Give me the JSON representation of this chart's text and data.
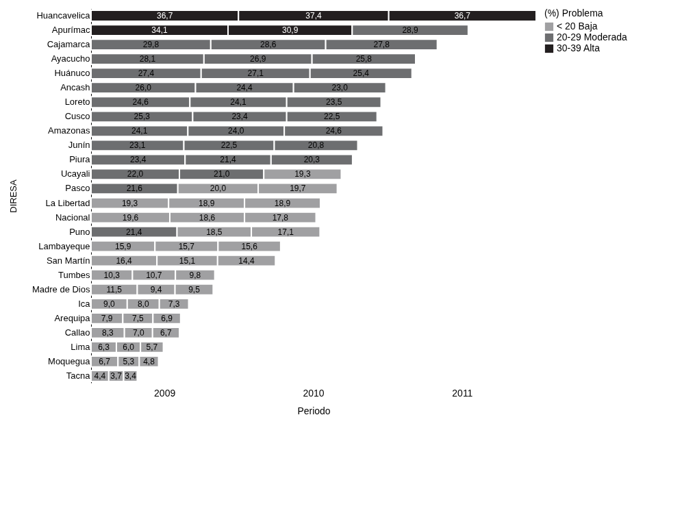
{
  "chart_data": {
    "type": "bar",
    "orientation": "horizontal",
    "stacked": true,
    "xlabel": "Periodo",
    "ylabel": "DIRESA",
    "legend_title": "(%)   Problema",
    "legend": "right",
    "annotations": [
      "< 20   Baja",
      "20-29  Moderada",
      "30-39  Alta"
    ],
    "categories": [
      "Huancavelica",
      "Apurímac",
      "Cajamarca",
      "Ayacucho",
      "Huánuco",
      "Ancash",
      "Loreto",
      "Cusco",
      "Amazonas",
      "Junín",
      "Piura",
      "Ucayali",
      "Pasco",
      "La Libertad",
      "Nacional",
      "Puno",
      "Lambayeque",
      "San Martín",
      "Tumbes",
      "Madre de Dios",
      "Ica",
      "Arequipa",
      "Callao",
      "Lima",
      "Moquegua",
      "Tacna"
    ],
    "series": [
      {
        "name": "2009",
        "values": [
          36.7,
          34.1,
          29.8,
          28.1,
          27.4,
          26.0,
          24.6,
          25.3,
          24.1,
          23.1,
          23.4,
          22.0,
          21.6,
          19.3,
          19.6,
          21.4,
          15.9,
          16.4,
          10.3,
          11.5,
          9.0,
          7.9,
          8.3,
          6.3,
          6.7,
          4.4
        ],
        "value_labels": [
          "36,7",
          "34,1",
          "29,8",
          "28,1",
          "27,4",
          "26,0",
          "24,6",
          "25,3",
          "24,1",
          "23,1",
          "23,4",
          "22,0",
          "21,6",
          "19,3",
          "19,6",
          "21,4",
          "15,9",
          "16,4",
          "10,3",
          "11,5",
          "9,0",
          "7,9",
          "8,3",
          "6,3",
          "6,7",
          "4,4"
        ],
        "colors": [
          "#231f20",
          "#231f20",
          "#6d6e70",
          "#6d6e70",
          "#6d6e70",
          "#6d6e70",
          "#6d6e70",
          "#6d6e70",
          "#6d6e70",
          "#6d6e70",
          "#6d6e70",
          "#6d6e70",
          "#6d6e70",
          "#a0a0a2",
          "#a0a0a2",
          "#6d6e70",
          "#a0a0a2",
          "#a0a0a2",
          "#a0a0a2",
          "#a0a0a2",
          "#a0a0a2",
          "#a0a0a2",
          "#a0a0a2",
          "#a0a0a2",
          "#a0a0a2",
          "#a0a0a2"
        ]
      },
      {
        "name": "2010",
        "values": [
          37.4,
          30.9,
          28.6,
          26.9,
          27.1,
          24.4,
          24.1,
          23.4,
          24.0,
          22.5,
          21.4,
          21.0,
          20.0,
          18.9,
          18.6,
          18.5,
          15.7,
          15.1,
          10.7,
          9.4,
          8.0,
          7.5,
          7.0,
          6.0,
          5.3,
          3.7
        ],
        "value_labels": [
          "37,4",
          "30,9",
          "28,6",
          "26,9",
          "27,1",
          "24,4",
          "24,1",
          "23,4",
          "24,0",
          "22,5",
          "21,4",
          "21,0",
          "20,0",
          "18,9",
          "18,6",
          "18,5",
          "15,7",
          "15,1",
          "10,7",
          "9,4",
          "8,0",
          "7,5",
          "7,0",
          "6,0",
          "5,3",
          "3,7"
        ],
        "colors": [
          "#231f20",
          "#231f20",
          "#6d6e70",
          "#6d6e70",
          "#6d6e70",
          "#6d6e70",
          "#6d6e70",
          "#6d6e70",
          "#6d6e70",
          "#6d6e70",
          "#6d6e70",
          "#6d6e70",
          "#a0a0a2",
          "#a0a0a2",
          "#a0a0a2",
          "#a0a0a2",
          "#a0a0a2",
          "#a0a0a2",
          "#a0a0a2",
          "#a0a0a2",
          "#a0a0a2",
          "#a0a0a2",
          "#a0a0a2",
          "#a0a0a2",
          "#a0a0a2",
          "#a0a0a2"
        ]
      },
      {
        "name": "2011",
        "values": [
          36.7,
          28.9,
          27.8,
          25.8,
          25.4,
          23.0,
          23.5,
          22.5,
          24.6,
          20.8,
          20.3,
          19.3,
          19.7,
          18.9,
          17.8,
          17.1,
          15.6,
          14.4,
          9.8,
          9.5,
          7.3,
          6.9,
          6.7,
          5.7,
          4.8,
          3.4
        ],
        "value_labels": [
          "36,7",
          "28,9",
          "27,8",
          "25,8",
          "25,4",
          "23,0",
          "23,5",
          "22,5",
          "24,6",
          "20,8",
          "20,3",
          "19,3",
          "19,7",
          "18,9",
          "17,8",
          "17,1",
          "15,6",
          "14,4",
          "9,8",
          "9,5",
          "7,3",
          "6,9",
          "6,7",
          "5,7",
          "4,8",
          "3,4"
        ],
        "colors": [
          "#231f20",
          "#6d6e70",
          "#6d6e70",
          "#6d6e70",
          "#6d6e70",
          "#6d6e70",
          "#6d6e70",
          "#6d6e70",
          "#6d6e70",
          "#6d6e70",
          "#6d6e70",
          "#a0a0a2",
          "#a0a0a2",
          "#a0a0a2",
          "#a0a0a2",
          "#a0a0a2",
          "#a0a0a2",
          "#a0a0a2",
          "#a0a0a2",
          "#a0a0a2",
          "#a0a0a2",
          "#a0a0a2",
          "#a0a0a2",
          "#a0a0a2",
          "#a0a0a2",
          "#a0a0a2"
        ]
      }
    ]
  }
}
